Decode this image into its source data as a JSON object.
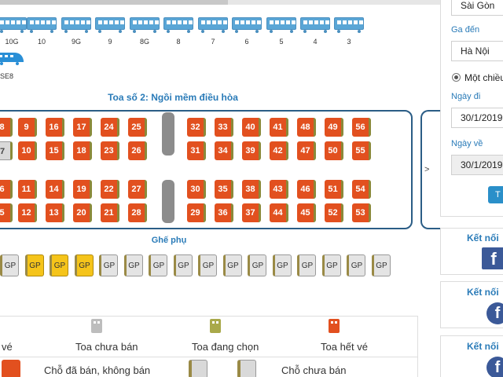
{
  "train": {
    "cars": [
      "10G",
      "10",
      "9G",
      "9",
      "8G",
      "8",
      "7",
      "6",
      "5",
      "4",
      "3"
    ],
    "locomotive_label": "SE8"
  },
  "coach": {
    "title": "Toa số 2: Ngồi mềm điều hòa",
    "seats": [
      {
        "label": "8",
        "status": "sold"
      },
      {
        "label": "9",
        "status": "sold"
      },
      {
        "label": "16",
        "status": "sold"
      },
      {
        "label": "17",
        "status": "sold"
      },
      {
        "label": "24",
        "status": "sold"
      },
      {
        "label": "25",
        "status": "sold"
      },
      {
        "label": "32",
        "status": "sold"
      },
      {
        "label": "33",
        "status": "sold"
      },
      {
        "label": "40",
        "status": "sold"
      },
      {
        "label": "41",
        "status": "sold"
      },
      {
        "label": "48",
        "status": "sold"
      },
      {
        "label": "49",
        "status": "sold"
      },
      {
        "label": "56",
        "status": "sold"
      },
      {
        "label": "7",
        "status": "empty"
      },
      {
        "label": "10",
        "status": "sold"
      },
      {
        "label": "15",
        "status": "sold"
      },
      {
        "label": "18",
        "status": "sold"
      },
      {
        "label": "23",
        "status": "sold"
      },
      {
        "label": "26",
        "status": "sold"
      },
      {
        "label": "31",
        "status": "sold"
      },
      {
        "label": "34",
        "status": "sold"
      },
      {
        "label": "39",
        "status": "sold"
      },
      {
        "label": "42",
        "status": "sold"
      },
      {
        "label": "47",
        "status": "sold"
      },
      {
        "label": "50",
        "status": "sold"
      },
      {
        "label": "55",
        "status": "sold"
      },
      {
        "label": "6",
        "status": "sold"
      },
      {
        "label": "11",
        "status": "sold"
      },
      {
        "label": "14",
        "status": "sold"
      },
      {
        "label": "19",
        "status": "sold"
      },
      {
        "label": "22",
        "status": "sold"
      },
      {
        "label": "27",
        "status": "sold"
      },
      {
        "label": "30",
        "status": "sold"
      },
      {
        "label": "35",
        "status": "sold"
      },
      {
        "label": "38",
        "status": "sold"
      },
      {
        "label": "43",
        "status": "sold"
      },
      {
        "label": "46",
        "status": "sold"
      },
      {
        "label": "51",
        "status": "sold"
      },
      {
        "label": "54",
        "status": "sold"
      },
      {
        "label": "5",
        "status": "sold"
      },
      {
        "label": "12",
        "status": "sold"
      },
      {
        "label": "13",
        "status": "sold"
      },
      {
        "label": "20",
        "status": "sold"
      },
      {
        "label": "21",
        "status": "sold"
      },
      {
        "label": "28",
        "status": "sold"
      },
      {
        "label": "29",
        "status": "sold"
      },
      {
        "label": "36",
        "status": "sold"
      },
      {
        "label": "37",
        "status": "sold"
      },
      {
        "label": "44",
        "status": "sold"
      },
      {
        "label": "45",
        "status": "sold"
      },
      {
        "label": "52",
        "status": "sold"
      },
      {
        "label": "53",
        "status": "sold"
      }
    ],
    "next_arrow": ">"
  },
  "extra_seats": {
    "title": "Ghế phụ",
    "seats": [
      {
        "label": "GP",
        "status": "free"
      },
      {
        "label": "GP",
        "status": "picked"
      },
      {
        "label": "GP",
        "status": "picked"
      },
      {
        "label": "GP",
        "status": "picked"
      },
      {
        "label": "GP",
        "status": "free"
      },
      {
        "label": "GP",
        "status": "free"
      },
      {
        "label": "GP",
        "status": "free"
      },
      {
        "label": "GP",
        "status": "free"
      },
      {
        "label": "GP",
        "status": "free"
      },
      {
        "label": "GP",
        "status": "free"
      },
      {
        "label": "GP",
        "status": "free"
      },
      {
        "label": "GP",
        "status": "free"
      },
      {
        "label": "GP",
        "status": "free"
      },
      {
        "label": "GP",
        "status": "free"
      },
      {
        "label": "GP",
        "status": "free"
      },
      {
        "label": "GP",
        "status": "free"
      }
    ]
  },
  "legend": {
    "partial_label": "vé",
    "items": [
      {
        "label": "Toa chưa bán",
        "color": "#bdbdbd"
      },
      {
        "label": "Toa đang chọn",
        "color": "#a9a94a"
      },
      {
        "label": "Toa hết vé",
        "color": "#e2501f"
      }
    ],
    "seat_sold_label": "Chỗ đã bán, không bán",
    "seat_free_label": "Chỗ chưa bán"
  },
  "search": {
    "from_value": "Sài Gòn",
    "to_label": "Ga đến",
    "to_value": "Hà Nội",
    "trip_type_label": "Một chiều",
    "depart_label": "Ngày đi",
    "depart_value": "30/1/2019",
    "return_label": "Ngày về",
    "return_value": "30/1/2019",
    "button_label": "T"
  },
  "social": {
    "title": "Kết nối",
    "icon": "f"
  },
  "colors": {
    "accent": "#2a7bb8",
    "sold": "#e2501f",
    "picked": "#f5c41a",
    "car": "#5aa6d6",
    "facebook": "#3b5998"
  }
}
